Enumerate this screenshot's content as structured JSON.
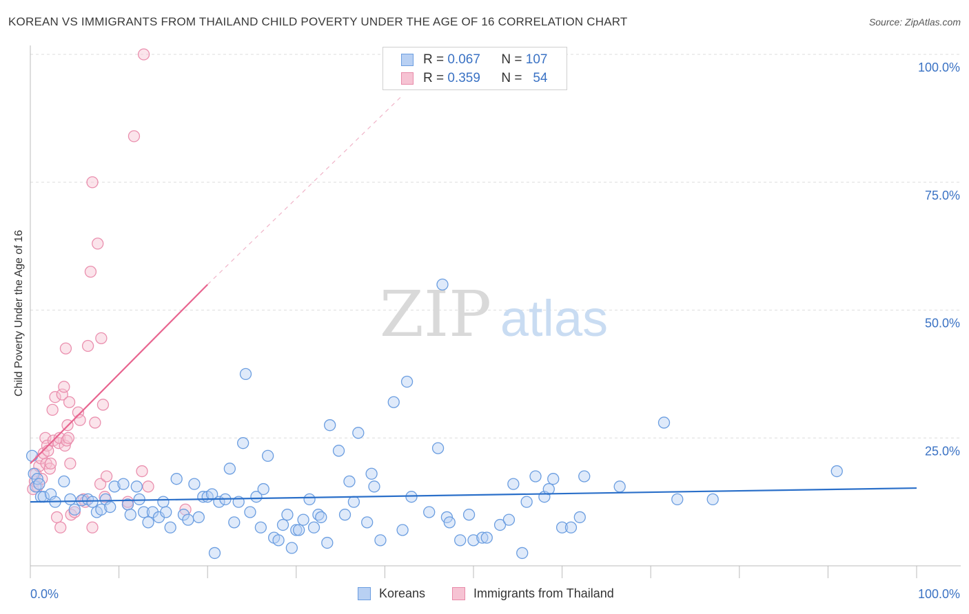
{
  "title": "KOREAN VS IMMIGRANTS FROM THAILAND CHILD POVERTY UNDER THE AGE OF 16 CORRELATION CHART",
  "source": "Source: ZipAtlas.com",
  "watermark": {
    "zip": "ZIP",
    "atlas": "atlas"
  },
  "legend": {
    "rows": [
      {
        "r_label": "R =",
        "r_value": "0.067",
        "n_label": "N =",
        "n_value": "107",
        "color": "#6a9de0",
        "fill": "#b8d0f3"
      },
      {
        "r_label": "R =",
        "r_value": "0.359",
        "n_label": "N =",
        "n_value": "54",
        "color": "#e889a8",
        "fill": "#f6c3d3"
      }
    ]
  },
  "bottom_legend": {
    "series1": "Koreans",
    "series2": "Immigrants from Thailand"
  },
  "colors": {
    "blue_line": "#2a6fc9",
    "pink_line": "#e8648f",
    "blue_marker": "#6a9de0",
    "pink_marker": "#ea8fae",
    "tick_text": "#3a72c4",
    "grid": "#dddddd"
  },
  "chart_data": {
    "type": "scatter",
    "xlabel": "",
    "ylabel": "Child Poverty Under the Age of 16",
    "xlim": [
      0,
      100
    ],
    "ylim": [
      0,
      100
    ],
    "x_tick_labels": [
      "0.0%",
      "100.0%"
    ],
    "y_tick_labels": [
      "25.0%",
      "50.0%",
      "75.0%",
      "100.0%"
    ],
    "y_ticks": [
      25,
      50,
      75,
      100
    ],
    "grid": true,
    "legend_position": "top-center",
    "series": [
      {
        "name": "Koreans",
        "color": "#6a9de0",
        "trend": {
          "x": [
            0,
            100
          ],
          "y": [
            12.5,
            15.2
          ]
        },
        "points": [
          [
            0.2,
            21.5
          ],
          [
            0.4,
            18.0
          ],
          [
            0.6,
            15.5
          ],
          [
            0.8,
            17.0
          ],
          [
            1.0,
            16.0
          ],
          [
            1.2,
            13.5
          ],
          [
            1.5,
            13.5
          ],
          [
            2.3,
            14.0
          ],
          [
            2.8,
            12.5
          ],
          [
            3.8,
            16.5
          ],
          [
            4.5,
            13.0
          ],
          [
            5.0,
            11.0
          ],
          [
            5.8,
            12.8
          ],
          [
            6.5,
            13.0
          ],
          [
            7.0,
            12.5
          ],
          [
            7.5,
            10.5
          ],
          [
            8.0,
            11.0
          ],
          [
            8.5,
            13.0
          ],
          [
            9.0,
            11.5
          ],
          [
            9.5,
            15.5
          ],
          [
            10.5,
            16.0
          ],
          [
            11.0,
            12.0
          ],
          [
            11.3,
            10.0
          ],
          [
            12.0,
            15.5
          ],
          [
            12.3,
            13.0
          ],
          [
            12.8,
            10.5
          ],
          [
            13.3,
            8.5
          ],
          [
            13.8,
            10.5
          ],
          [
            14.5,
            9.5
          ],
          [
            15.0,
            12.5
          ],
          [
            15.3,
            10.5
          ],
          [
            15.8,
            7.5
          ],
          [
            16.5,
            17.0
          ],
          [
            17.3,
            10.0
          ],
          [
            17.8,
            9.0
          ],
          [
            18.5,
            16.0
          ],
          [
            19.0,
            9.5
          ],
          [
            19.5,
            13.5
          ],
          [
            20.0,
            13.5
          ],
          [
            20.5,
            14.0
          ],
          [
            20.8,
            2.5
          ],
          [
            21.3,
            12.5
          ],
          [
            22.0,
            13.0
          ],
          [
            22.5,
            19.0
          ],
          [
            23.0,
            8.5
          ],
          [
            23.5,
            12.5
          ],
          [
            24.0,
            24.0
          ],
          [
            24.3,
            37.5
          ],
          [
            24.8,
            10.5
          ],
          [
            25.5,
            13.5
          ],
          [
            26.0,
            7.5
          ],
          [
            26.3,
            15.0
          ],
          [
            26.8,
            21.5
          ],
          [
            27.5,
            5.5
          ],
          [
            28.0,
            5.0
          ],
          [
            28.5,
            8.0
          ],
          [
            29.0,
            10.0
          ],
          [
            29.5,
            3.5
          ],
          [
            30.0,
            7.0
          ],
          [
            30.3,
            7.0
          ],
          [
            30.8,
            9.0
          ],
          [
            31.5,
            13.0
          ],
          [
            32.0,
            7.5
          ],
          [
            32.5,
            10.0
          ],
          [
            32.8,
            9.5
          ],
          [
            33.5,
            4.5
          ],
          [
            33.8,
            27.5
          ],
          [
            34.8,
            22.5
          ],
          [
            35.5,
            10.0
          ],
          [
            36.0,
            16.5
          ],
          [
            36.5,
            12.5
          ],
          [
            37.0,
            26.0
          ],
          [
            38.0,
            8.5
          ],
          [
            38.5,
            18.0
          ],
          [
            38.8,
            15.5
          ],
          [
            39.5,
            5.0
          ],
          [
            41.0,
            32.0
          ],
          [
            42.0,
            7.0
          ],
          [
            42.5,
            36.0
          ],
          [
            43.0,
            13.5
          ],
          [
            45.0,
            10.5
          ],
          [
            46.0,
            23.0
          ],
          [
            46.5,
            55.0
          ],
          [
            47.0,
            9.5
          ],
          [
            47.3,
            8.5
          ],
          [
            48.5,
            5.0
          ],
          [
            49.5,
            10.0
          ],
          [
            50.0,
            5.0
          ],
          [
            51.0,
            5.5
          ],
          [
            51.5,
            5.5
          ],
          [
            53.0,
            8.0
          ],
          [
            54.0,
            9.0
          ],
          [
            54.5,
            16.0
          ],
          [
            55.5,
            2.5
          ],
          [
            56.0,
            12.5
          ],
          [
            57.0,
            17.5
          ],
          [
            58.0,
            13.5
          ],
          [
            58.5,
            15.0
          ],
          [
            59.0,
            17.0
          ],
          [
            60.0,
            7.5
          ],
          [
            61.0,
            7.5
          ],
          [
            62.0,
            9.5
          ],
          [
            62.5,
            17.5
          ],
          [
            66.5,
            15.5
          ],
          [
            71.5,
            28.0
          ],
          [
            73.0,
            13.0
          ],
          [
            77.0,
            13.0
          ],
          [
            91.0,
            18.5
          ]
        ]
      },
      {
        "name": "Immigrants from Thailand",
        "color": "#ea8fae",
        "trend": {
          "x": [
            0,
            20
          ],
          "y": [
            20.0,
            55.0
          ]
        },
        "trend_dashed": {
          "x": [
            20,
            42
          ],
          "y": [
            55.0,
            92.0
          ]
        },
        "points": [
          [
            0.3,
            15.0
          ],
          [
            0.5,
            16.5
          ],
          [
            0.6,
            18.0
          ],
          [
            0.8,
            15.5
          ],
          [
            1.0,
            19.5
          ],
          [
            1.2,
            21.0
          ],
          [
            1.3,
            17.0
          ],
          [
            1.5,
            22.0
          ],
          [
            1.7,
            25.0
          ],
          [
            1.8,
            20.0
          ],
          [
            1.9,
            23.5
          ],
          [
            2.0,
            22.5
          ],
          [
            2.2,
            19.0
          ],
          [
            2.3,
            20.0
          ],
          [
            2.5,
            30.5
          ],
          [
            2.6,
            24.5
          ],
          [
            2.8,
            33.0
          ],
          [
            3.0,
            9.5
          ],
          [
            3.2,
            24.0
          ],
          [
            3.3,
            25.0
          ],
          [
            3.4,
            7.5
          ],
          [
            3.6,
            33.5
          ],
          [
            3.8,
            35.0
          ],
          [
            3.9,
            23.5
          ],
          [
            4.0,
            42.5
          ],
          [
            4.1,
            24.5
          ],
          [
            4.2,
            27.5
          ],
          [
            4.3,
            25.0
          ],
          [
            4.4,
            32.0
          ],
          [
            4.5,
            20.0
          ],
          [
            4.6,
            10.0
          ],
          [
            5.0,
            10.5
          ],
          [
            5.4,
            30.0
          ],
          [
            5.6,
            28.5
          ],
          [
            6.0,
            13.0
          ],
          [
            6.2,
            12.5
          ],
          [
            6.5,
            43.0
          ],
          [
            6.8,
            57.5
          ],
          [
            7.0,
            7.5
          ],
          [
            7.3,
            28.0
          ],
          [
            7.6,
            63.0
          ],
          [
            7.9,
            16.0
          ],
          [
            8.0,
            44.5
          ],
          [
            8.2,
            31.5
          ],
          [
            8.4,
            13.5
          ],
          [
            8.6,
            17.5
          ],
          [
            7.0,
            75.0
          ],
          [
            11.0,
            12.0
          ],
          [
            11.0,
            12.5
          ],
          [
            11.7,
            84.0
          ],
          [
            12.6,
            18.5
          ],
          [
            12.8,
            100.0
          ],
          [
            13.3,
            15.5
          ],
          [
            17.5,
            11.0
          ]
        ]
      }
    ]
  }
}
